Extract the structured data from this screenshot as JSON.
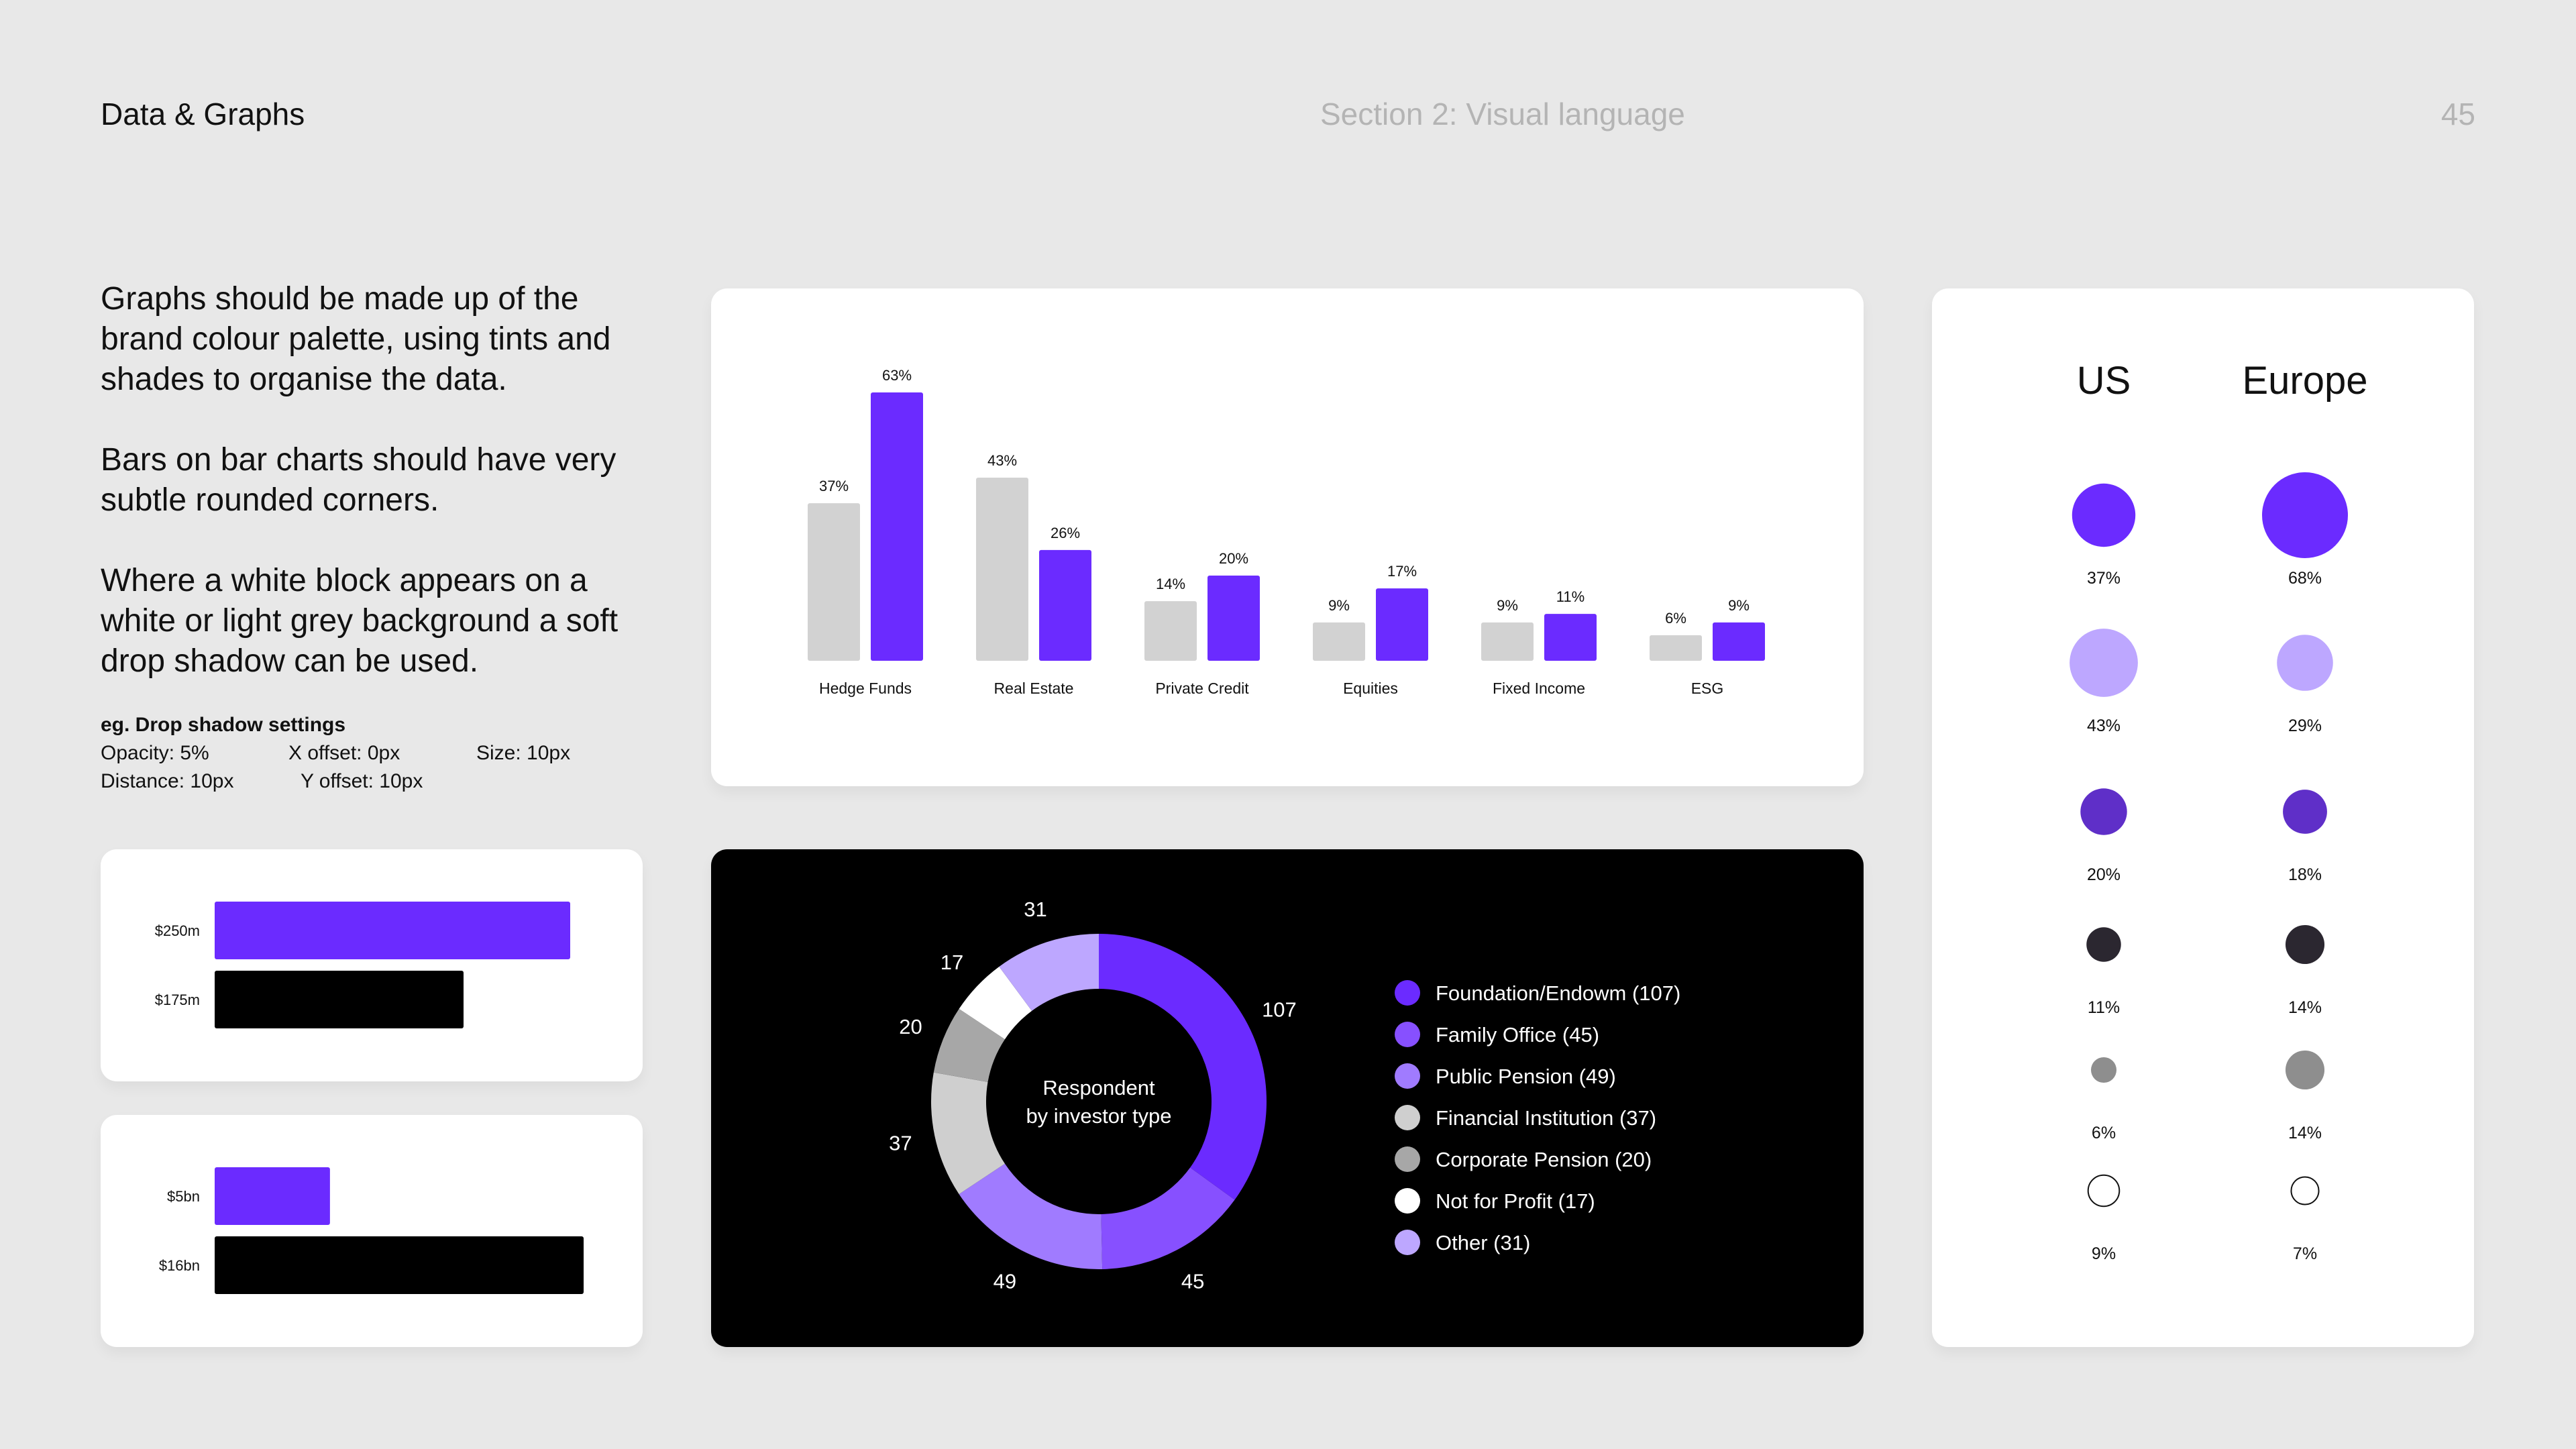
{
  "header": {
    "title": "Data & Graphs",
    "section": "Section 2: Visual language",
    "page_number": "45"
  },
  "intro": {
    "p1": "Graphs should be made up of the brand colour palette, using tints and shades to organise the data.",
    "p2": "Bars on bar charts should have very subtle rounded corners.",
    "p3": "Where a white block appears on a white or light grey background a soft drop shadow can be used."
  },
  "shadow_settings": {
    "title": "eg. Drop shadow settings",
    "opacity": "Opacity: 5%",
    "x_offset": "X offset: 0px",
    "size": "Size: 10px",
    "distance": "Distance: 10px",
    "y_offset": "Y offset: 10px"
  },
  "colors": {
    "purple": "#6b2bff",
    "grey_bar": "#d2d2d2",
    "black": "#000000"
  },
  "chart_data": [
    {
      "type": "bar",
      "categories": [
        "Hedge Funds",
        "Real Estate",
        "Private Credit",
        "Equities",
        "Fixed Income",
        "ESG"
      ],
      "series": [
        {
          "values": [
            37,
            43,
            14,
            9,
            9,
            6
          ],
          "labels": [
            "37%",
            "43%",
            "14%",
            "9%",
            "9%",
            "6%"
          ],
          "color": "#d2d2d2"
        },
        {
          "values": [
            63,
            26,
            20,
            17,
            11,
            9
          ],
          "labels": [
            "63%",
            "26%",
            "20%",
            "17%",
            "11%",
            "9%"
          ],
          "color": "#6b2bff"
        }
      ],
      "ylim": [
        0,
        63
      ]
    },
    {
      "type": "bar",
      "orientation": "horizontal",
      "categories": [
        "$250m",
        "$175m"
      ],
      "values": [
        250,
        175
      ],
      "colors": [
        "#6b2bff",
        "#000000"
      ],
      "xlim": [
        0,
        250
      ]
    },
    {
      "type": "bar",
      "orientation": "horizontal",
      "categories": [
        "$5bn",
        "$16bn"
      ],
      "values": [
        5,
        16
      ],
      "colors": [
        "#6b2bff",
        "#000000"
      ],
      "xlim": [
        0,
        16
      ]
    },
    {
      "type": "pie",
      "style": "donut",
      "center_label": [
        "Respondent",
        "by investor type"
      ],
      "slices": [
        {
          "label": "Foundation/Endowm (107)",
          "value": 107,
          "value_label": "107",
          "color": "#6b2bff"
        },
        {
          "label": "Family Office (45)",
          "value": 45,
          "value_label": "45",
          "color": "#8750ff"
        },
        {
          "label": "Public Pension (49)",
          "value": 49,
          "value_label": "49",
          "color": "#a07bff"
        },
        {
          "label": "Financial Institution (37)",
          "value": 37,
          "value_label": "37",
          "color": "#cfcfcf"
        },
        {
          "label": "Corporate Pension (20)",
          "value": 20,
          "value_label": "20",
          "color": "#a7a7a7"
        },
        {
          "label": "Not for Profit (17)",
          "value": 17,
          "value_label": "17",
          "color": "#ffffff"
        },
        {
          "label": "Other (31)",
          "value": 31,
          "value_label": "31",
          "color": "#bda7ff"
        }
      ]
    },
    {
      "type": "scatter",
      "style": "proportional-bubbles",
      "columns": [
        "US",
        "Europe"
      ],
      "rows": [
        {
          "color": "#6b2bff",
          "values": [
            37,
            68
          ],
          "labels": [
            "37%",
            "68%"
          ]
        },
        {
          "color": "#bda7ff",
          "values": [
            43,
            29
          ],
          "labels": [
            "43%",
            "29%"
          ]
        },
        {
          "color": "#5f2fc8",
          "values": [
            20,
            18
          ],
          "labels": [
            "20%",
            "18%"
          ]
        },
        {
          "color": "#2b2730",
          "values": [
            11,
            14
          ],
          "labels": [
            "11%",
            "14%"
          ]
        },
        {
          "color": "#8e8e8e",
          "values": [
            6,
            14
          ],
          "labels": [
            "6%",
            "14%"
          ]
        },
        {
          "color": "#ffffff",
          "values": [
            9,
            7
          ],
          "labels": [
            "9%",
            "7%"
          ]
        }
      ]
    }
  ]
}
